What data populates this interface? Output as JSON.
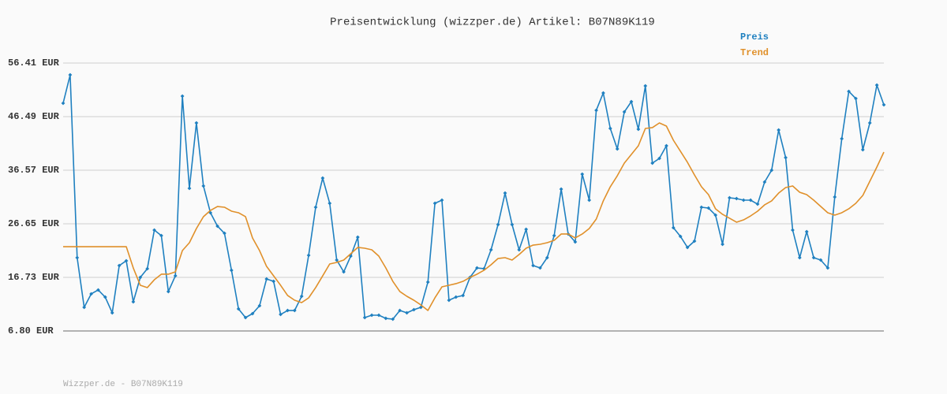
{
  "chart_data": {
    "type": "line",
    "title": "Preisentwicklung (wizzper.de) Artikel: B07N89K119",
    "footer": "Wizzper.de - B07N89K119",
    "categories": [
      null,
      null,
      null,
      null,
      null,
      null,
      null,
      null,
      null,
      null,
      null,
      null,
      null,
      null,
      null,
      null,
      null,
      null,
      null,
      null,
      null,
      null,
      null,
      null,
      null,
      null,
      null,
      null,
      null,
      null,
      null,
      null,
      null,
      null,
      null,
      null,
      null,
      null,
      null,
      null,
      null,
      null,
      null,
      null,
      null,
      null,
      null,
      null,
      null,
      null,
      null,
      null,
      null,
      null,
      null,
      null,
      null,
      null,
      null,
      null,
      null,
      null,
      null,
      null,
      null,
      null,
      null,
      null,
      null,
      null,
      null,
      null,
      null,
      null,
      null,
      null,
      null,
      null,
      null,
      null,
      null,
      null,
      null,
      null,
      null,
      null,
      null,
      null,
      null,
      null,
      null,
      null,
      null,
      null,
      null,
      null,
      null,
      null,
      null,
      null,
      null,
      null,
      null,
      null,
      null,
      null,
      null,
      null,
      null,
      null,
      null,
      null,
      null,
      null,
      null,
      null,
      null,
      null
    ],
    "ylim": [
      6.8,
      56.41
    ],
    "yticks": [
      {
        "value": 6.8,
        "label": "6.80 EUR"
      },
      {
        "value": 16.73,
        "label": "16.73 EUR"
      },
      {
        "value": 26.65,
        "label": "26.65 EUR"
      },
      {
        "value": 36.57,
        "label": "36.57 EUR"
      },
      {
        "value": 46.49,
        "label": "46.49 EUR"
      },
      {
        "value": 56.41,
        "label": "56.41 EUR"
      }
    ],
    "grid": true,
    "legend": "top-right",
    "series": [
      {
        "name": "Preis",
        "color": "#1f80c0",
        "markers": true,
        "values": [
          48.97,
          54.22,
          20.37,
          11.18,
          13.66,
          14.39,
          13.07,
          10.16,
          18.91,
          19.79,
          12.2,
          16.72,
          18.33,
          25.48,
          24.46,
          14.1,
          17.01,
          50.28,
          33.21,
          45.32,
          33.65,
          28.69,
          26.21,
          24.89,
          18.04,
          10.89,
          9.28,
          10.01,
          11.47,
          16.43,
          15.99,
          9.86,
          10.59,
          10.59,
          13.22,
          20.81,
          29.71,
          35.11,
          30.44,
          19.93,
          17.74,
          20.66,
          24.16,
          9.28,
          9.72,
          9.72,
          9.13,
          8.99,
          10.59,
          10.16,
          10.74,
          11.18,
          15.85,
          30.44,
          31.02,
          12.49,
          13.07,
          13.37,
          16.72,
          18.47,
          18.33,
          21.83,
          26.5,
          32.33,
          26.5,
          21.83,
          25.62,
          18.91,
          18.47,
          20.37,
          24.46,
          33.06,
          24.75,
          23.29,
          35.84,
          31.02,
          47.66,
          50.87,
          44.3,
          40.51,
          47.36,
          49.26,
          44.15,
          52.18,
          37.88,
          38.75,
          41.09,
          25.91,
          24.31,
          22.27,
          23.43,
          29.71,
          29.56,
          28.25,
          22.85,
          31.46,
          31.31,
          31.02,
          31.02,
          30.29,
          34.38,
          36.57,
          44.01,
          38.9,
          25.48,
          20.37,
          25.19,
          20.37,
          19.93,
          18.47,
          31.61,
          42.4,
          51.16,
          49.84,
          40.36,
          45.32,
          52.32,
          48.68
        ]
      },
      {
        "name": "Trend",
        "color": "#e0902a",
        "markers": false,
        "values": [
          22.41,
          22.41,
          22.41,
          22.41,
          22.41,
          22.41,
          22.41,
          22.41,
          22.41,
          22.41,
          18.47,
          15.26,
          14.83,
          16.28,
          17.31,
          17.31,
          17.74,
          21.68,
          23.14,
          25.77,
          27.96,
          29.12,
          29.85,
          29.71,
          28.98,
          28.69,
          27.96,
          24.02,
          21.68,
          18.76,
          17.01,
          15.26,
          13.37,
          12.49,
          12.05,
          12.93,
          14.83,
          17.01,
          19.2,
          19.49,
          19.93,
          21.1,
          22.27,
          22.12,
          21.83,
          20.66,
          18.47,
          15.99,
          14.1,
          13.22,
          12.49,
          11.62,
          10.59,
          12.93,
          14.97,
          15.26,
          15.56,
          15.99,
          16.72,
          17.31,
          18.04,
          19.06,
          20.22,
          20.37,
          19.93,
          20.95,
          22.12,
          22.7,
          22.85,
          23.14,
          23.58,
          24.75,
          24.75,
          24.02,
          24.75,
          25.77,
          27.52,
          30.88,
          33.5,
          35.54,
          37.88,
          39.48,
          41.09,
          44.3,
          44.45,
          45.32,
          44.74,
          42.11,
          40.07,
          38.03,
          35.69,
          33.5,
          32.04,
          29.42,
          28.4,
          27.67,
          26.94,
          27.37,
          28.1,
          28.98,
          30.15,
          30.88,
          32.33,
          33.36,
          33.65,
          32.48,
          32.04,
          31.02,
          29.85,
          28.69,
          28.25,
          28.69,
          29.42,
          30.44,
          31.9,
          34.52,
          37.15,
          39.92
        ]
      }
    ]
  }
}
